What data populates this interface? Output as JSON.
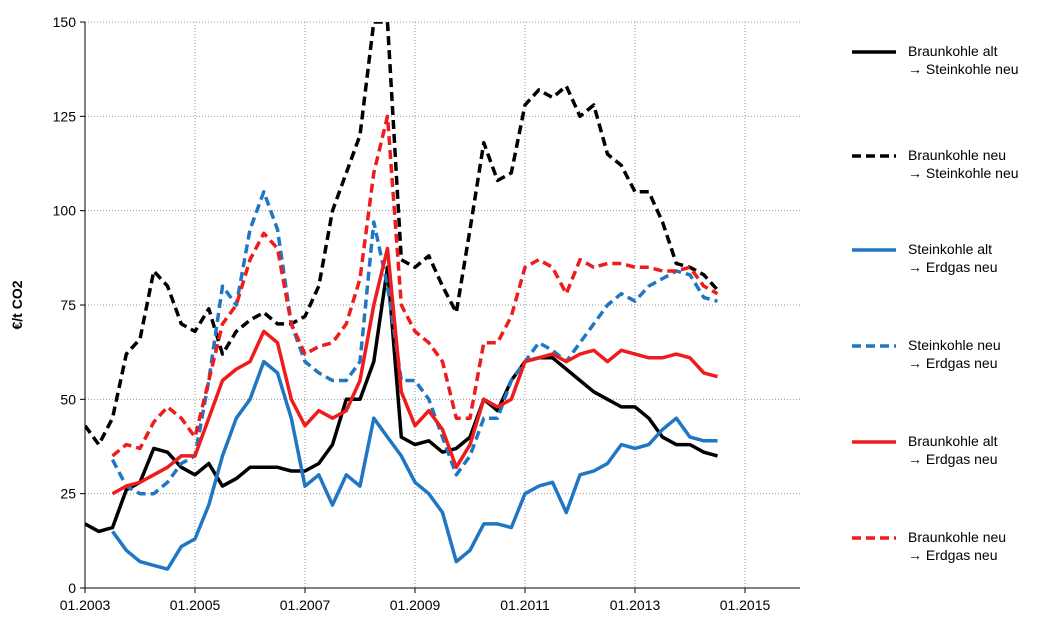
{
  "chart_data": {
    "type": "line",
    "y_label": "€/t CO2",
    "x": [
      "2003-01",
      "2003-04",
      "2003-07",
      "2003-10",
      "2004-01",
      "2004-04",
      "2004-07",
      "2004-10",
      "2005-01",
      "2005-04",
      "2005-07",
      "2005-10",
      "2006-01",
      "2006-04",
      "2006-07",
      "2006-10",
      "2007-01",
      "2007-04",
      "2007-07",
      "2007-10",
      "2008-01",
      "2008-04",
      "2008-07",
      "2008-10",
      "2009-01",
      "2009-04",
      "2009-07",
      "2009-10",
      "2010-01",
      "2010-04",
      "2010-07",
      "2010-10",
      "2011-01",
      "2011-04",
      "2011-07",
      "2011-10",
      "2012-01",
      "2012-04",
      "2012-07",
      "2012-10",
      "2013-01",
      "2013-04",
      "2013-07",
      "2013-10",
      "2014-01",
      "2014-04",
      "2014-07"
    ],
    "series": [
      {
        "name": "Braunkohle alt\n→ Steinkohle neu",
        "color": "#000000",
        "dash": false,
        "values": [
          17,
          15,
          16,
          26,
          28,
          37,
          36,
          32,
          30,
          33,
          27,
          29,
          32,
          32,
          32,
          31,
          31,
          33,
          38,
          50,
          50,
          60,
          85,
          40,
          38,
          39,
          36,
          37,
          40,
          50,
          47,
          55,
          60,
          61,
          61,
          58,
          55,
          52,
          50,
          48,
          48,
          45,
          40,
          38,
          38,
          36,
          35
        ]
      },
      {
        "name": "Braunkohle neu\n→ Steinkohle neu",
        "color": "#000000",
        "dash": true,
        "values": [
          43,
          38,
          45,
          62,
          66,
          84,
          80,
          70,
          68,
          74,
          62,
          68,
          71,
          73,
          70,
          70,
          72,
          80,
          100,
          110,
          120,
          150,
          150,
          87,
          85,
          88,
          80,
          73,
          95,
          118,
          108,
          110,
          128,
          132,
          130,
          133,
          125,
          128,
          115,
          112,
          105,
          105,
          97,
          86,
          85,
          83,
          79
        ]
      },
      {
        "name": "Steinkohle alt\n→ Erdgas neu",
        "color": "#1f77c4",
        "dash": false,
        "values": [
          null,
          null,
          15,
          10,
          7,
          6,
          5,
          11,
          13,
          22,
          35,
          45,
          50,
          60,
          57,
          45,
          27,
          30,
          22,
          30,
          27,
          45,
          40,
          35,
          28,
          25,
          20,
          7,
          10,
          17,
          17,
          16,
          25,
          27,
          28,
          20,
          30,
          31,
          33,
          38,
          37,
          38,
          42,
          45,
          40,
          39,
          39
        ]
      },
      {
        "name": "Steinkohle neu\n→ Erdgas neu",
        "color": "#1f77c4",
        "dash": true,
        "values": [
          null,
          null,
          34,
          27,
          25,
          25,
          28,
          33,
          35,
          55,
          80,
          75,
          95,
          105,
          95,
          70,
          60,
          57,
          55,
          55,
          60,
          97,
          80,
          55,
          55,
          50,
          40,
          30,
          35,
          45,
          45,
          55,
          60,
          65,
          63,
          60,
          65,
          70,
          75,
          78,
          76,
          80,
          82,
          84,
          83,
          77,
          76
        ]
      },
      {
        "name": "Braunkohle alt\n→ Erdgas neu",
        "color": "#ee1c1c",
        "dash": false,
        "values": [
          null,
          null,
          25,
          27,
          28,
          30,
          32,
          35,
          35,
          45,
          55,
          58,
          60,
          68,
          65,
          50,
          43,
          47,
          45,
          47,
          55,
          75,
          90,
          52,
          43,
          47,
          42,
          32,
          38,
          50,
          48,
          50,
          60,
          61,
          62,
          60,
          62,
          63,
          60,
          63,
          62,
          61,
          61,
          62,
          61,
          57,
          56
        ]
      },
      {
        "name": "Braunkohle neu\n→ Erdgas neu",
        "color": "#ee1c1c",
        "dash": true,
        "values": [
          null,
          null,
          35,
          38,
          37,
          44,
          48,
          45,
          40,
          55,
          70,
          75,
          87,
          94,
          90,
          70,
          62,
          64,
          65,
          70,
          82,
          110,
          125,
          75,
          68,
          65,
          60,
          45,
          45,
          65,
          65,
          72,
          85,
          87,
          85,
          78,
          87,
          85,
          86,
          86,
          85,
          85,
          84,
          84,
          85,
          80,
          78
        ]
      }
    ],
    "xlim": [
      "2003-01",
      "2016-01"
    ],
    "xticks": [
      {
        "value": "2003-01",
        "label": "01.2003"
      },
      {
        "value": "2005-01",
        "label": "01.2005"
      },
      {
        "value": "2007-01",
        "label": "01.2007"
      },
      {
        "value": "2009-01",
        "label": "01.2009"
      },
      {
        "value": "2011-01",
        "label": "01.2011"
      },
      {
        "value": "2013-01",
        "label": "01.2013"
      },
      {
        "value": "2015-01",
        "label": "01.2015"
      }
    ],
    "ylim": [
      0,
      150
    ],
    "yticks": [
      0,
      25,
      50,
      75,
      100,
      125,
      150
    ],
    "grid": true,
    "legend": "right"
  }
}
